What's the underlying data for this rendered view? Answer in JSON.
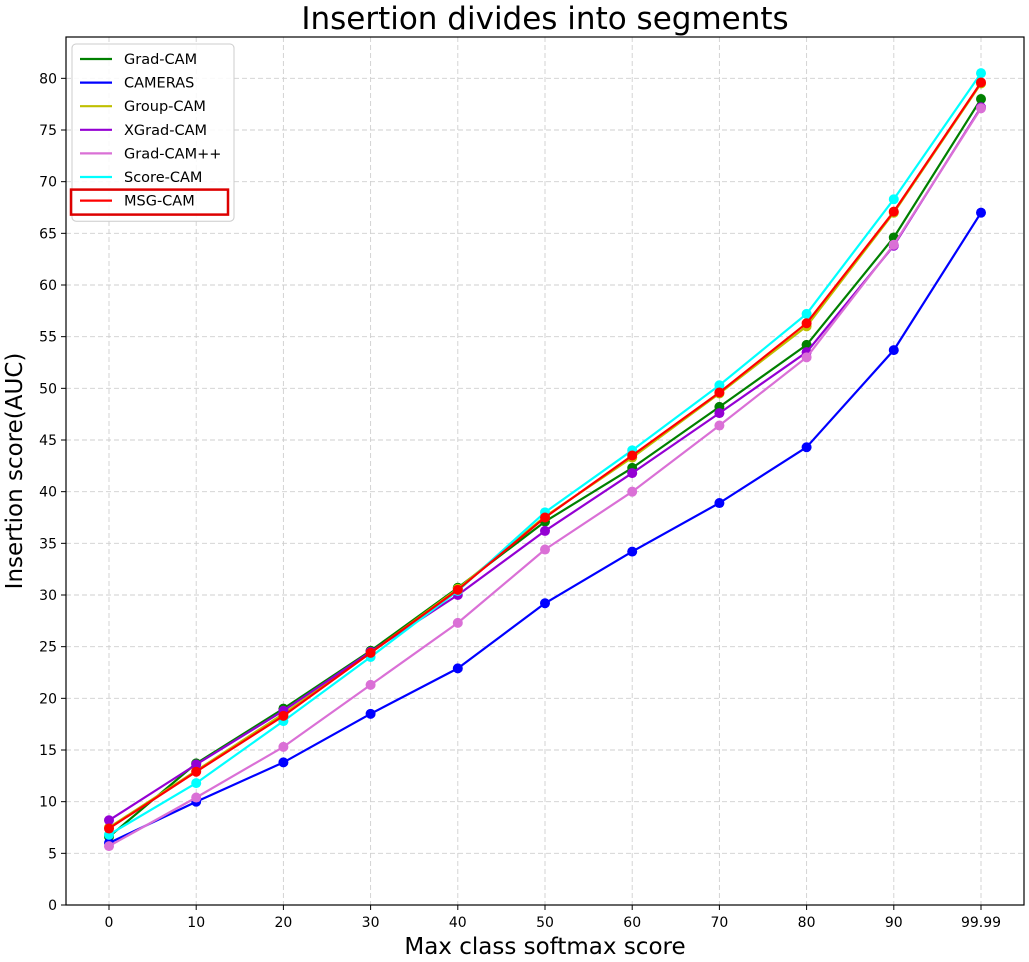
{
  "chart_data": {
    "type": "line",
    "title": "Insertion divides into segments",
    "xlabel": "Max class softmax score",
    "ylabel": "Insertion score(AUC)",
    "categories": [
      "0",
      "10",
      "20",
      "30",
      "40",
      "50",
      "60",
      "70",
      "80",
      "90",
      "99.99"
    ],
    "ylim": [
      0,
      84
    ],
    "yticks": [
      0,
      5,
      10,
      15,
      20,
      25,
      30,
      35,
      40,
      45,
      50,
      55,
      60,
      65,
      70,
      75,
      80
    ],
    "grid": true,
    "legend_position": "top-left",
    "highlighted_legend_entry": "MSG-CAM",
    "highlight_color": "#dd0000",
    "series": [
      {
        "name": "Grad-CAM",
        "color": "#008000",
        "values": [
          6.6,
          13.7,
          19.0,
          24.6,
          30.7,
          37.1,
          42.3,
          48.2,
          54.2,
          64.6,
          78.0
        ]
      },
      {
        "name": "CAMERAS",
        "color": "#0000ff",
        "values": [
          6.0,
          10.0,
          13.8,
          18.5,
          22.9,
          29.2,
          34.2,
          38.9,
          44.3,
          53.7,
          67.0
        ]
      },
      {
        "name": "Group-CAM",
        "color": "#bfbf00",
        "values": [
          7.5,
          13.0,
          18.5,
          24.4,
          30.6,
          37.6,
          43.3,
          49.5,
          56.0,
          67.0,
          79.5
        ]
      },
      {
        "name": "XGrad-CAM",
        "color": "#9400d3",
        "values": [
          8.2,
          13.6,
          18.8,
          24.5,
          30.0,
          36.2,
          41.8,
          47.6,
          53.5,
          63.8,
          77.2
        ]
      },
      {
        "name": "Grad-CAM++",
        "color": "#da70d6",
        "values": [
          5.7,
          10.4,
          15.3,
          21.3,
          27.3,
          34.4,
          40.0,
          46.4,
          53.0,
          63.9,
          77.1
        ]
      },
      {
        "name": "Score-CAM",
        "color": "#00ffff",
        "values": [
          6.8,
          11.8,
          17.8,
          24.0,
          30.4,
          38.0,
          44.0,
          50.3,
          57.2,
          68.3,
          80.5
        ]
      },
      {
        "name": "MSG-CAM",
        "color": "#ff0000",
        "values": [
          7.4,
          12.9,
          18.3,
          24.4,
          30.5,
          37.5,
          43.5,
          49.6,
          56.3,
          67.1,
          79.6
        ]
      }
    ]
  }
}
